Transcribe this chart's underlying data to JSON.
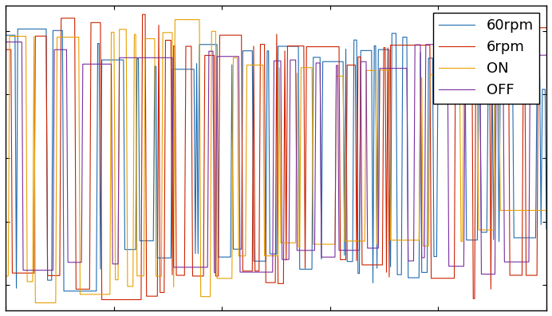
{
  "title": "",
  "xlabel": "",
  "ylabel": "",
  "xlim": [
    0,
    1
  ],
  "ylim": [
    -1.2,
    1.2
  ],
  "series": [
    {
      "label": "60rpm",
      "color": "#1f6cb0"
    },
    {
      "label": "6rpm",
      "color": "#cc2200"
    },
    {
      "label": "ON",
      "color": "#e8a000"
    },
    {
      "label": "OFF",
      "color": "#7b2f9e"
    }
  ],
  "n_samples": 400,
  "legend_loc": "upper right",
  "background_color": "#ffffff",
  "grid": false,
  "tick_fontsize": 11,
  "legend_fontsize": 13
}
